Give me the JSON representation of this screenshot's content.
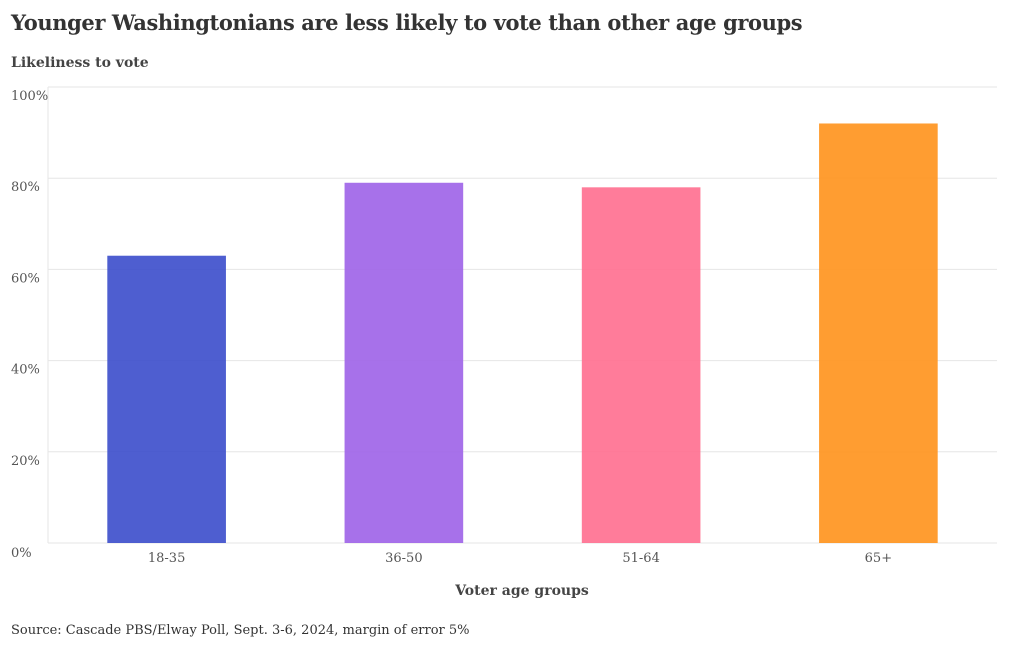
{
  "chart_data": {
    "type": "bar",
    "title": "Younger Washingtonians are less likely to vote than other age groups",
    "ylabel": "Likeliness to vote",
    "xlabel": "Voter age groups",
    "categories": [
      "18-35",
      "36-50",
      "51-64",
      "65+"
    ],
    "values": [
      63,
      79,
      78,
      92
    ],
    "colors": [
      "#3f50cc",
      "#9f65e8",
      "#ff7191",
      "#ff9520"
    ],
    "ylim": [
      0,
      100
    ],
    "yticks": [
      0,
      20,
      40,
      60,
      80,
      100
    ],
    "ytick_labels": [
      "0%",
      "20%",
      "40%",
      "60%",
      "80%",
      "100%"
    ],
    "grid": true,
    "legend": "none"
  },
  "source": "Source: Cascade PBS/Elway Poll, Sept. 3-6, 2024, margin of error 5%"
}
